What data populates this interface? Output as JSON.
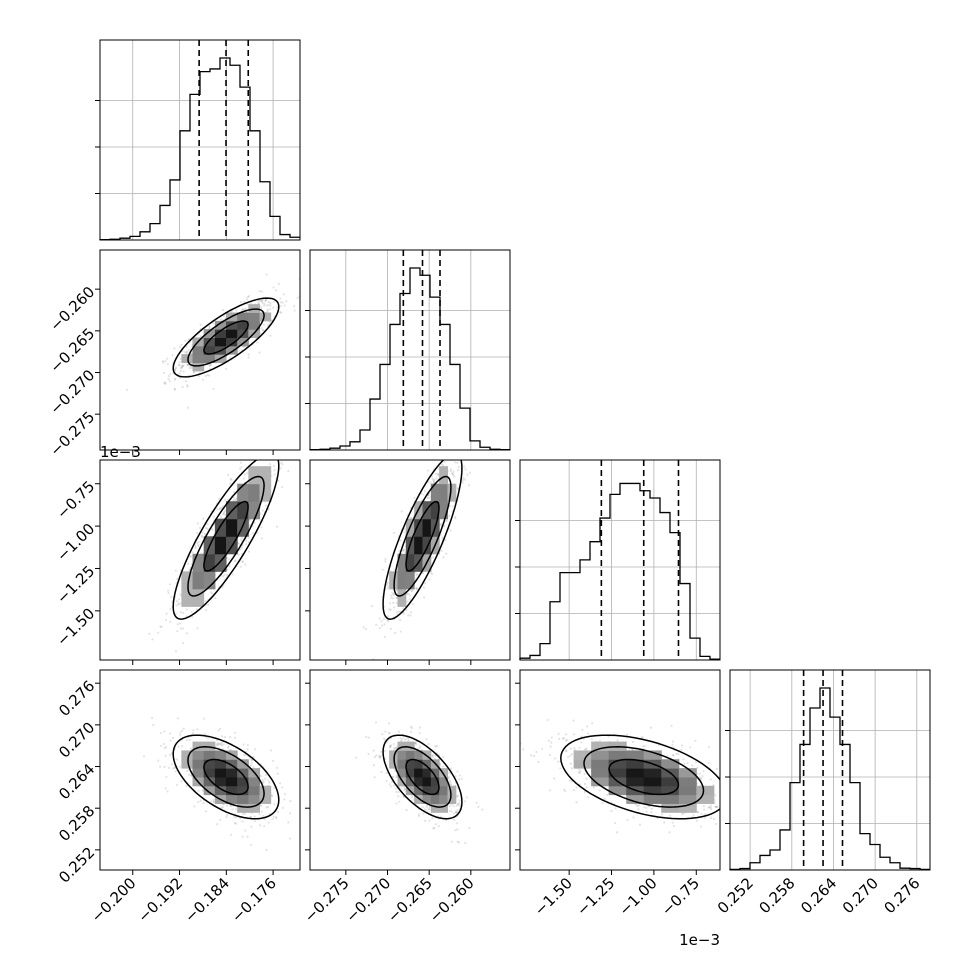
{
  "chart_data": {
    "type": "corner",
    "grid": true,
    "parameters": [
      {
        "ticks": [
          "−0.200",
          "−0.192",
          "−0.184",
          "−0.176"
        ],
        "tick_values": [
          -0.2,
          -0.192,
          -0.184,
          -0.176
        ],
        "range": [
          -0.2056,
          -0.1714
        ],
        "quantiles": [
          -0.18865,
          -0.18405,
          -0.18025
        ],
        "offset_label": ""
      },
      {
        "ticks": [
          "−0.275",
          "−0.270",
          "−0.265",
          "−0.260"
        ],
        "tick_values": [
          -0.275,
          -0.27,
          -0.265,
          -0.26
        ],
        "range": [
          -0.2793,
          -0.2553
        ],
        "quantiles": [
          -0.2681,
          -0.2658,
          -0.2637
        ],
        "offset_label": ""
      },
      {
        "ticks": [
          "−1.50",
          "−1.25",
          "−1.00",
          "−0.75"
        ],
        "tick_values": [
          -1.5,
          -1.25,
          -1.0,
          -0.75
        ],
        "range": [
          -1.79,
          -0.61
        ],
        "quantiles": [
          -1.31,
          -1.06,
          -0.855
        ],
        "offset_label": "1e−3"
      },
      {
        "ticks": [
          "0.252",
          "0.258",
          "0.264",
          "0.270",
          "0.276"
        ],
        "tick_values": [
          0.252,
          0.258,
          0.264,
          0.27,
          0.276
        ],
        "range": [
          0.2491,
          0.2779
        ],
        "quantiles": [
          0.2597,
          0.2625,
          0.2653
        ],
        "offset_label": ""
      }
    ],
    "histograms": [
      [
        0.002,
        0.004,
        0.01,
        0.02,
        0.045,
        0.09,
        0.19,
        0.33,
        0.6,
        0.8,
        0.925,
        0.94,
        1.0,
        0.96,
        0.84,
        0.6,
        0.32,
        0.13,
        0.03,
        0.015
      ],
      [
        0.002,
        0.004,
        0.01,
        0.022,
        0.045,
        0.11,
        0.28,
        0.47,
        0.69,
        0.86,
        1.0,
        0.96,
        0.84,
        0.69,
        0.47,
        0.23,
        0.05,
        0.015,
        0.004,
        0.002
      ],
      [
        0.01,
        0.025,
        0.09,
        0.32,
        0.48,
        0.48,
        0.55,
        0.65,
        0.78,
        0.91,
        0.97,
        0.97,
        0.93,
        0.89,
        0.81,
        0.7,
        0.42,
        0.12,
        0.02,
        0.005
      ],
      [
        0.003,
        0.008,
        0.04,
        0.08,
        0.11,
        0.22,
        0.48,
        0.69,
        0.89,
        1.0,
        0.84,
        0.69,
        0.48,
        0.2,
        0.14,
        0.07,
        0.04,
        0.01,
        0.008,
        0.003
      ]
    ]
  }
}
